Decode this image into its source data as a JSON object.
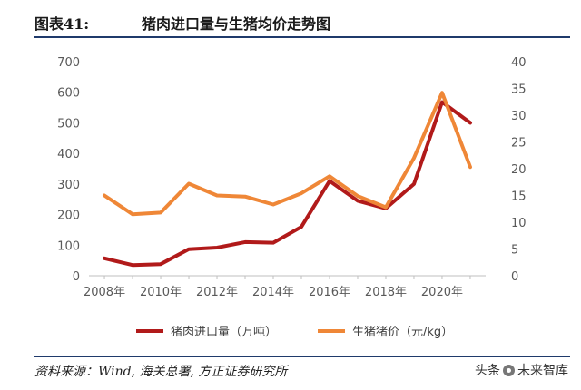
{
  "figure": {
    "number": "图表41:",
    "title": "猪肉进口量与生猪均价走势图"
  },
  "source": "资料来源：Wind, 海关总署, 方正证券研究所",
  "watermark": {
    "text_a": "头条",
    "text_b": "未来智库",
    "icon": "watermark-logo-icon"
  },
  "chart_data": {
    "type": "line",
    "x": [
      2008,
      2009,
      2010,
      2011,
      2012,
      2013,
      2014,
      2015,
      2016,
      2017,
      2018,
      2019,
      2020,
      2021
    ],
    "x_ticks": [
      2008,
      2010,
      2012,
      2014,
      2016,
      2018,
      2020
    ],
    "x_tick_suffix": "年",
    "y_left": {
      "min": 0,
      "max": 700,
      "ticks": [
        0,
        100,
        200,
        300,
        400,
        500,
        600,
        700
      ]
    },
    "y_right": {
      "min": 0,
      "max": 40,
      "ticks": [
        0,
        5,
        10,
        15,
        20,
        25,
        30,
        35,
        40
      ]
    },
    "grid": false,
    "legend_position": "bottom",
    "series": [
      {
        "name": "猪肉进口量（万吨）",
        "axis": "left",
        "color": "#b11a1a",
        "values": [
          57,
          35,
          38,
          87,
          92,
          110,
          108,
          160,
          310,
          245,
          220,
          300,
          568,
          500
        ]
      },
      {
        "name": "生猪猪价（元/kg）",
        "axis": "right",
        "color": "#ef8737",
        "values": [
          15,
          11.5,
          11.8,
          17.2,
          15,
          14.8,
          13.3,
          15.4,
          18.6,
          14.9,
          12.8,
          22,
          34.2,
          20.3
        ]
      }
    ]
  }
}
